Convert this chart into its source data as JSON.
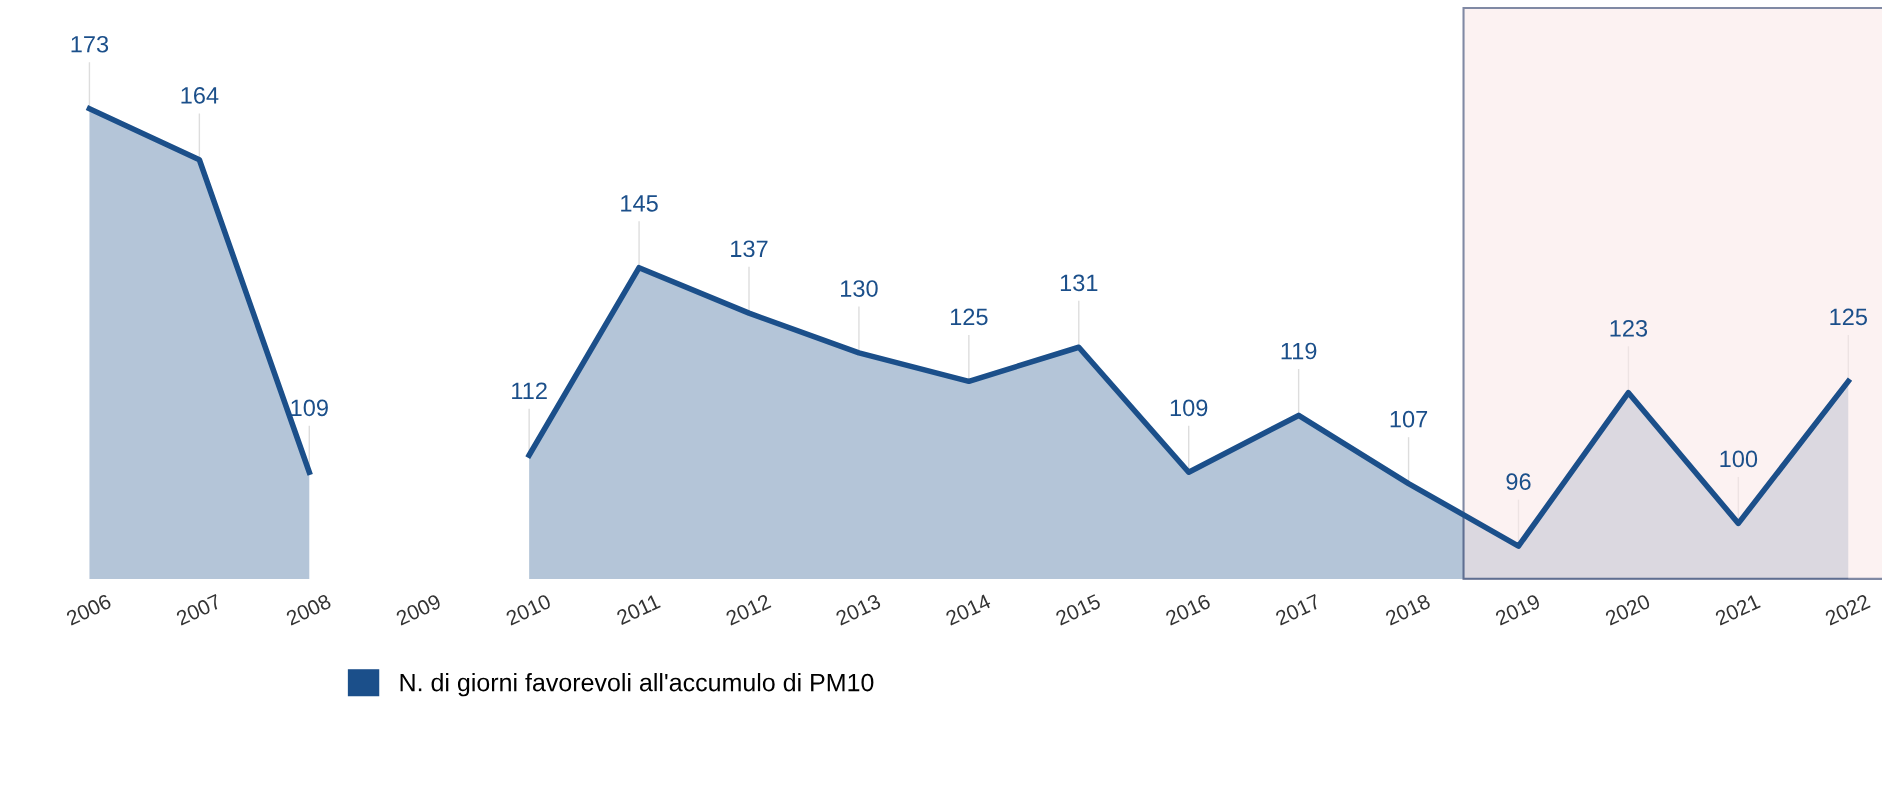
{
  "chart_data": {
    "type": "area",
    "categories": [
      "2006",
      "2007",
      "2008",
      "2009",
      "2010",
      "2011",
      "2012",
      "2013",
      "2014",
      "2015",
      "2016",
      "2017",
      "2018",
      "2019",
      "2020",
      "2021",
      "2022"
    ],
    "series": [
      {
        "name": "N. di giorni favorevoli all'accumulo di PM10",
        "color": "#1b4f8a",
        "values": [
          173,
          164,
          109,
          null,
          112,
          145,
          137,
          130,
          125,
          131,
          109,
          119,
          107,
          96,
          123,
          100,
          125
        ]
      }
    ],
    "tick_labels": "x",
    "data_labels": true,
    "legend": "bottom",
    "grid": false,
    "bands": [
      {
        "axis": "x",
        "from": "2019",
        "to": "2022",
        "color": "#fbe8e8"
      }
    ]
  }
}
